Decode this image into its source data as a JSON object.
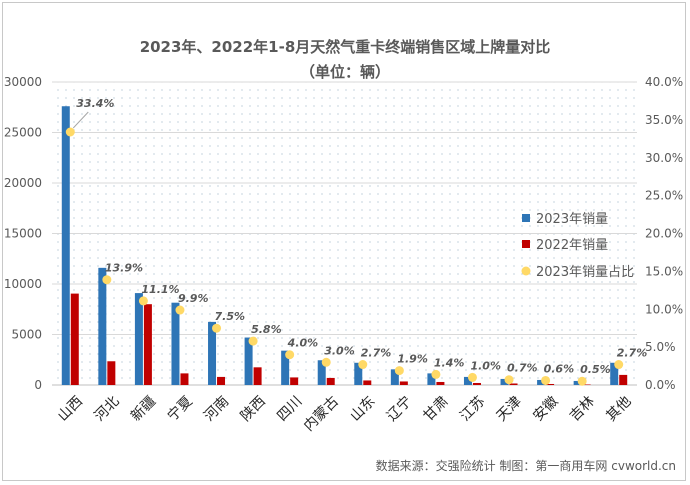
{
  "chart_data": {
    "type": "bar",
    "title": "2023年、2022年1-8月天然气重卡终端销售区域上牌量对比",
    "subtitle": "（单位：辆）",
    "categories": [
      "山西",
      "河北",
      "新疆",
      "宁夏",
      "河南",
      "陕西",
      "四川",
      "内蒙古",
      "山东",
      "辽宁",
      "甘肃",
      "江苏",
      "天津",
      "安徽",
      "吉林",
      "其他"
    ],
    "series": [
      {
        "name": "2023年销量",
        "type": "bar",
        "axis": "left",
        "color": "#2e75b6",
        "values": [
          27600,
          11600,
          9100,
          8150,
          6250,
          4700,
          3400,
          2450,
          2200,
          1550,
          1150,
          800,
          600,
          500,
          400,
          2200
        ]
      },
      {
        "name": "2022年销量",
        "type": "bar",
        "axis": "left",
        "color": "#c00000",
        "values": [
          9050,
          2350,
          8000,
          1150,
          800,
          1750,
          750,
          700,
          450,
          350,
          300,
          200,
          150,
          100,
          50,
          1000
        ]
      },
      {
        "name": "2023年销量占比",
        "type": "scatter",
        "axis": "right",
        "color": "#ffd966",
        "values": [
          33.4,
          13.9,
          11.1,
          9.9,
          7.5,
          5.8,
          4.0,
          3.0,
          2.7,
          1.9,
          1.4,
          1.0,
          0.7,
          0.6,
          0.5,
          2.7
        ],
        "labels": [
          "33.4%",
          "13.9%",
          "11.1%",
          "9.9%",
          "7.5%",
          "5.8%",
          "4.0%",
          "3.0%",
          "2.7%",
          "1.9%",
          "1.4%",
          "1.0%",
          "0.7%",
          "0.6%",
          "0.5%",
          "2.7%"
        ]
      }
    ],
    "y_left": {
      "min": 0,
      "max": 30000,
      "ticks": [
        "0",
        "5000",
        "10000",
        "15000",
        "20000",
        "25000",
        "30000"
      ]
    },
    "y_right": {
      "min": 0,
      "max": 40,
      "ticks": [
        "0.0%",
        "5.0%",
        "10.0%",
        "15.0%",
        "20.0%",
        "25.0%",
        "30.0%",
        "35.0%",
        "40.0%"
      ]
    },
    "legend_position": "right",
    "grid": true,
    "source": "数据来源：交强险统计  制图：第一商用车网 cvworld.cn"
  }
}
